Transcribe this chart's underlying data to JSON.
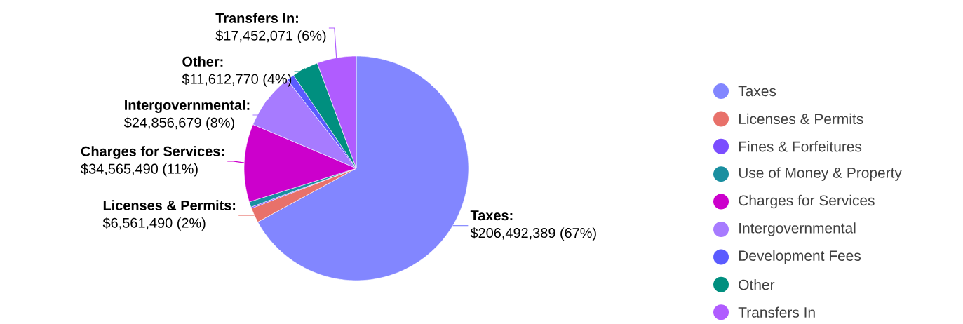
{
  "chart_data": {
    "type": "pie",
    "categories": [
      "Taxes",
      "Licenses & Permits",
      "Fines & Forfeitures",
      "Use of Money & Property",
      "Charges for Services",
      "Intergovernmental",
      "Development Fees",
      "Other",
      "Transfers In"
    ],
    "values": [
      206492389,
      6561490,
      600000,
      2400000,
      34565490,
      24856679,
      3400000,
      11612770,
      17452071
    ],
    "colors": [
      "#8286ff",
      "#e8716a",
      "#7b4dff",
      "#1a8fa0",
      "#cc00cc",
      "#a77bff",
      "#5b5bff",
      "#008f7f",
      "#b05cff"
    ],
    "value_labels": [
      "$206,492,389 (67%)",
      "$6,561,490 (2%)",
      null,
      null,
      "$34,565,490 (11%)",
      "$24,856,679 (8%)",
      null,
      "$11,612,770 (4%)",
      "$17,452,071 (6%)"
    ],
    "annotations": [
      "Taxes:",
      "Licenses & Permits:",
      "Charges for Services:",
      "Intergovernmental:",
      "Other:",
      "Transfers In:"
    ],
    "legend": "right"
  }
}
